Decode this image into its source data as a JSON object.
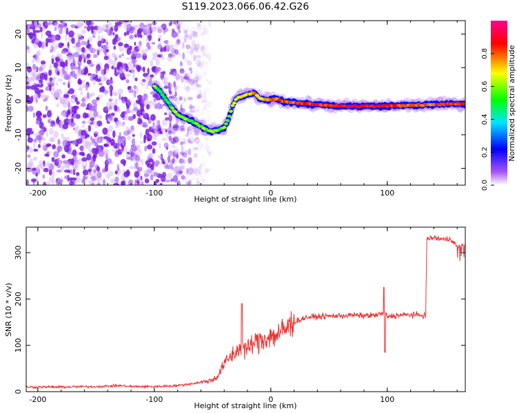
{
  "title": "S119.2023.066.06.42.G26",
  "chart_data": [
    {
      "type": "heatmap",
      "title": "S119.2023.066.06.42.G26",
      "xlabel": "Height of straight line (km)",
      "ylabel": "Frequency (Hz)",
      "xlim": [
        -210,
        167
      ],
      "ylim": [
        -25,
        24
      ],
      "xticks": [
        -200,
        -100,
        0,
        100
      ],
      "yticks": [
        -20,
        -10,
        0,
        10,
        20
      ],
      "grid": false,
      "colorbar": {
        "label": "Normalized spectral amplitude",
        "range": [
          0,
          1
        ],
        "ticks": [
          "0.0",
          "0.2",
          "0.4",
          "0.6",
          "0.8"
        ],
        "colors": [
          "#ffffff",
          "#a855f7",
          "#0000ff",
          "#00e5ff",
          "#00ff00",
          "#ffff00",
          "#ff0000",
          "#ff0090"
        ]
      },
      "noise_region_x": [
        -210,
        -62
      ],
      "ridge": [
        {
          "x": -100,
          "y": 4.5,
          "a": 0.55
        },
        {
          "x": -95,
          "y": 3,
          "a": 0.5
        },
        {
          "x": -90,
          "y": 0.5,
          "a": 0.5
        },
        {
          "x": -85,
          "y": -2,
          "a": 0.55
        },
        {
          "x": -80,
          "y": -4,
          "a": 0.6
        },
        {
          "x": -75,
          "y": -5,
          "a": 0.6
        },
        {
          "x": -70,
          "y": -5.5,
          "a": 0.55
        },
        {
          "x": -65,
          "y": -6.5,
          "a": 0.55
        },
        {
          "x": -60,
          "y": -7.5,
          "a": 0.6
        },
        {
          "x": -55,
          "y": -8.5,
          "a": 0.6
        },
        {
          "x": -50,
          "y": -9,
          "a": 0.62
        },
        {
          "x": -45,
          "y": -8.5,
          "a": 0.6
        },
        {
          "x": -40,
          "y": -8,
          "a": 0.6
        },
        {
          "x": -36,
          "y": -5,
          "a": 0.55
        },
        {
          "x": -33,
          "y": -1.5,
          "a": 0.6
        },
        {
          "x": -30,
          "y": 0.5,
          "a": 0.65
        },
        {
          "x": -25,
          "y": 1.5,
          "a": 0.7
        },
        {
          "x": -20,
          "y": 2,
          "a": 0.7
        },
        {
          "x": -15,
          "y": 2.5,
          "a": 0.75
        },
        {
          "x": -10,
          "y": 1,
          "a": 0.7
        },
        {
          "x": -5,
          "y": 0.5,
          "a": 0.7
        },
        {
          "x": 0,
          "y": 0.5,
          "a": 0.75
        },
        {
          "x": 5,
          "y": 0.8,
          "a": 0.8
        },
        {
          "x": 10,
          "y": 0,
          "a": 0.85
        },
        {
          "x": 20,
          "y": -0.5,
          "a": 0.8
        },
        {
          "x": 30,
          "y": -0.8,
          "a": 0.85
        },
        {
          "x": 40,
          "y": -1,
          "a": 0.85
        },
        {
          "x": 50,
          "y": -1.2,
          "a": 0.82
        },
        {
          "x": 60,
          "y": -1.5,
          "a": 0.85
        },
        {
          "x": 70,
          "y": -1.5,
          "a": 0.9
        },
        {
          "x": 80,
          "y": -1.5,
          "a": 0.88
        },
        {
          "x": 90,
          "y": -1.5,
          "a": 0.85
        },
        {
          "x": 100,
          "y": -1.4,
          "a": 0.85
        },
        {
          "x": 110,
          "y": -1.3,
          "a": 0.82
        },
        {
          "x": 120,
          "y": -1.2,
          "a": 0.8
        },
        {
          "x": 130,
          "y": -1.1,
          "a": 0.8
        },
        {
          "x": 140,
          "y": -1,
          "a": 0.82
        },
        {
          "x": 150,
          "y": -0.9,
          "a": 0.85
        },
        {
          "x": 160,
          "y": -0.8,
          "a": 0.85
        },
        {
          "x": 167,
          "y": -0.8,
          "a": 0.85
        }
      ]
    },
    {
      "type": "line",
      "xlabel": "Height of straight line (km)",
      "ylabel": "SNR (10 * v/v)",
      "xlim": [
        -210,
        167
      ],
      "ylim": [
        0,
        355
      ],
      "xticks": [
        -200,
        -100,
        0,
        100
      ],
      "yticks": [
        0,
        100,
        200,
        300
      ],
      "grid": false,
      "color": "#ee3333",
      "series": [
        {
          "x": [
            -210,
            -180,
            -150,
            -130,
            -120,
            -100,
            -80,
            -60,
            -50,
            -45,
            -40,
            -35,
            -30,
            -25,
            -20,
            -15,
            -10,
            -5,
            0,
            5,
            10,
            15,
            20,
            30,
            40,
            50,
            60,
            70,
            80,
            90,
            95,
            98,
            100,
            110,
            120,
            130,
            133,
            134,
            140,
            150,
            155,
            160,
            167
          ],
          "values": [
            10,
            10,
            11,
            13,
            11,
            11,
            13,
            20,
            25,
            35,
            60,
            75,
            85,
            100,
            90,
            105,
            110,
            115,
            120,
            122,
            130,
            140,
            150,
            160,
            162,
            163,
            164,
            165,
            164,
            165,
            168,
            170,
            162,
            165,
            166,
            165,
            165,
            330,
            332,
            328,
            330,
            312,
            315
          ]
        }
      ]
    }
  ]
}
